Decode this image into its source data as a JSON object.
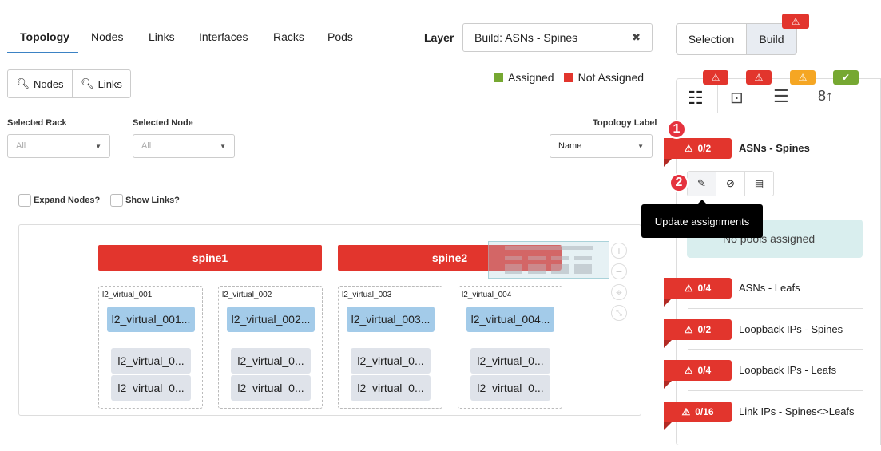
{
  "tabs": [
    "Topology",
    "Nodes",
    "Links",
    "Interfaces",
    "Racks",
    "Pods"
  ],
  "layer": {
    "label": "Layer",
    "value": "Build: ASNs - Spines"
  },
  "mode": {
    "selection": "Selection",
    "build": "Build"
  },
  "search": {
    "nodes": "Nodes",
    "links": "Links"
  },
  "legend": {
    "assigned": "Assigned",
    "not_assigned": "Not Assigned",
    "assigned_color": "#76a832",
    "not_assigned_color": "#e2352d"
  },
  "filters": {
    "rack_label": "Selected Rack",
    "rack_value": "All",
    "node_label": "Selected Node",
    "node_value": "All",
    "topo_label": "Topology Label",
    "topo_value": "Name"
  },
  "checks": {
    "expand": "Expand Nodes?",
    "links": "Show Links?"
  },
  "spines": [
    "spine1",
    "spine2"
  ],
  "groups": [
    {
      "label": "l2_virtual_001",
      "lead": "l2_virtual_001...",
      "members": [
        "l2_virtual_0...",
        "l2_virtual_0..."
      ]
    },
    {
      "label": "l2_virtual_002",
      "lead": "l2_virtual_002...",
      "members": [
        "l2_virtual_0...",
        "l2_virtual_0..."
      ]
    },
    {
      "label": "l2_virtual_003",
      "lead": "l2_virtual_003...",
      "members": [
        "l2_virtual_0...",
        "l2_virtual_0..."
      ]
    },
    {
      "label": "l2_virtual_004",
      "lead": "l2_virtual_004...",
      "members": [
        "l2_virtual_0...",
        "l2_virtual_0..."
      ]
    }
  ],
  "panel": {
    "tab_status": [
      "error",
      "error",
      "warning",
      "ok"
    ],
    "tooltip": "Update assignments",
    "empty": "No pools assigned",
    "steps": [
      "1",
      "2"
    ],
    "items": [
      {
        "count": "0/2",
        "name": "ASNs - Spines"
      },
      {
        "count": "0/4",
        "name": "ASNs - Leafs"
      },
      {
        "count": "0/2",
        "name": "Loopback IPs - Spines"
      },
      {
        "count": "0/4",
        "name": "Loopback IPs - Leafs"
      },
      {
        "count": "0/16",
        "name": "Link IPs - Spines<>Leafs"
      }
    ]
  }
}
